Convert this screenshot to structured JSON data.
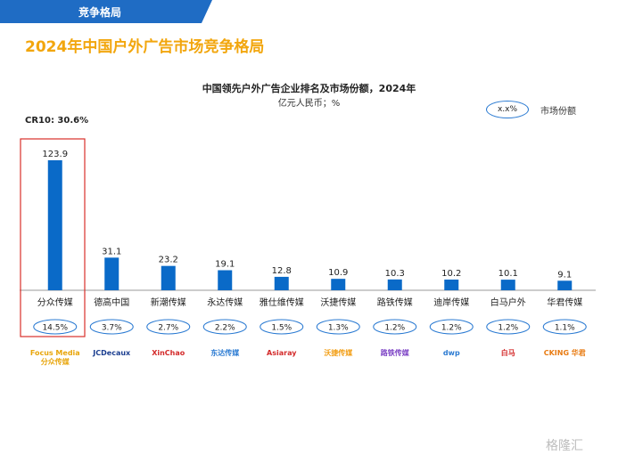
{
  "banner": {
    "label": "竞争格局",
    "color": "#1f6cc4"
  },
  "page_title": "2024年中国户外广告市场竞争格局",
  "cr10": "CR10: 30.6%",
  "legend": {
    "oval_label": "x.x%",
    "label": "市场份额"
  },
  "chart_data": {
    "type": "bar",
    "title": "中国领先户外广告企业排名及市场份额，2024年",
    "subtitle": "亿元人民币；%",
    "categories": [
      "分众传媒",
      "德高中国",
      "新潮传媒",
      "永达传媒",
      "雅仕维传媒",
      "沃捷传媒",
      "路铁传媒",
      "迪岸传媒",
      "白马户外",
      "华君传媒"
    ],
    "values": [
      123.9,
      31.1,
      23.2,
      19.1,
      12.8,
      10.9,
      10.3,
      10.2,
      10.1,
      9.1
    ],
    "value_labels": [
      "123.9",
      "31.1",
      "23.2",
      "19.1",
      "12.8",
      "10.9",
      "10.3",
      "10.2",
      "10.1",
      "9.1"
    ],
    "shares": [
      "14.5%",
      "3.7%",
      "2.7%",
      "2.2%",
      "1.5%",
      "1.3%",
      "1.2%",
      "1.2%",
      "1.2%",
      "1.1%"
    ],
    "ylim": [
      0,
      130
    ],
    "bar_color": "#0a6ac8",
    "highlight_color": "#d9302a",
    "grid": false
  },
  "logos": [
    {
      "text": "Focus Media 分众传媒",
      "color": "#e8a50a"
    },
    {
      "text": "JCDecaux",
      "color": "#1a3d8f"
    },
    {
      "text": "XinChao",
      "color": "#d32a2a"
    },
    {
      "text": "东达传媒",
      "color": "#2a7ad2"
    },
    {
      "text": "Asiaray",
      "color": "#d32a2a"
    },
    {
      "text": "沃捷传媒",
      "color": "#f29d12"
    },
    {
      "text": "路铁传媒",
      "color": "#7a3fc4"
    },
    {
      "text": "dwp",
      "color": "#2a7ad2"
    },
    {
      "text": "白马",
      "color": "#d32a2a"
    },
    {
      "text": "CKING 华君",
      "color": "#e87a10"
    }
  ],
  "watermark": "格隆汇"
}
